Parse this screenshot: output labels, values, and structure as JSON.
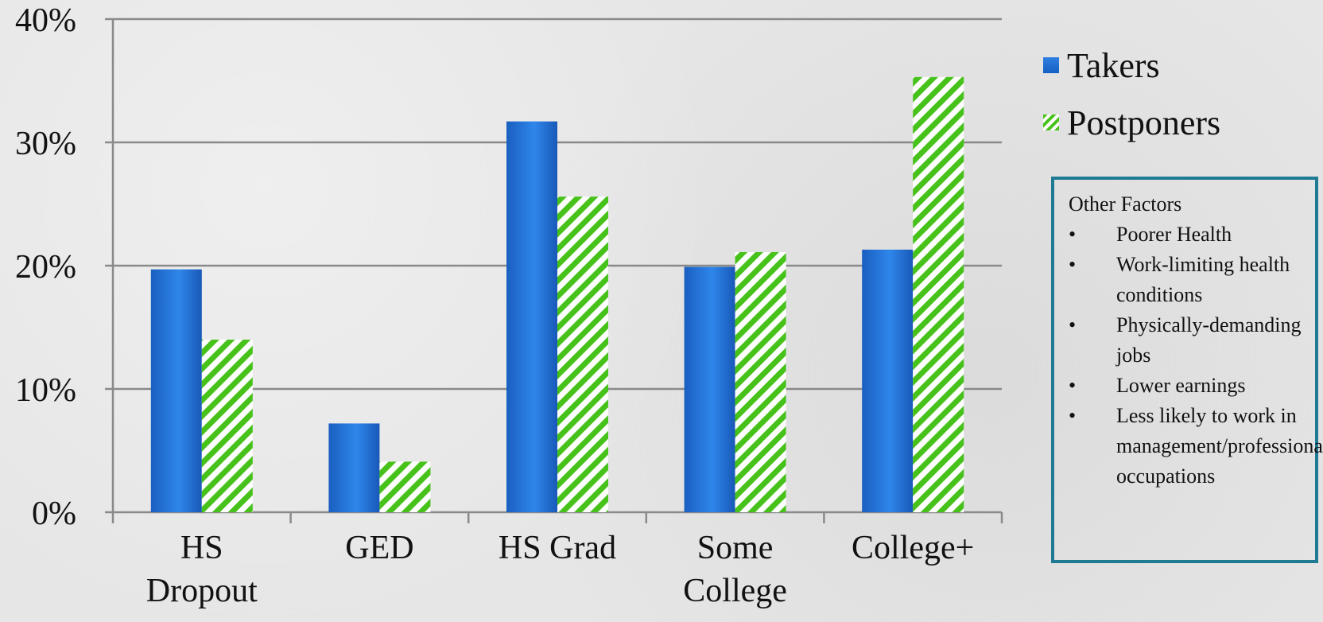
{
  "chart_data": {
    "type": "bar",
    "categories": [
      [
        "HS",
        "Dropout"
      ],
      [
        "GED"
      ],
      [
        "HS Grad"
      ],
      [
        "Some",
        "College"
      ],
      [
        "College+"
      ]
    ],
    "series": [
      {
        "name": "Takers",
        "values": [
          19.7,
          7.2,
          31.7,
          19.9,
          21.3
        ],
        "color": "#1f6fd8"
      },
      {
        "name": "Postponers",
        "values": [
          14.0,
          4.1,
          25.6,
          21.1,
          35.3
        ],
        "color": "#47c21b"
      }
    ],
    "yticks": [
      "0%",
      "10%",
      "20%",
      "30%",
      "40%"
    ],
    "ylim": [
      0,
      40
    ],
    "grid": true,
    "legend": "right"
  },
  "legend": {
    "takers": "Takers",
    "postponers": "Postponers"
  },
  "factors_box": {
    "title": "Other Factors",
    "items": [
      "Poorer Health",
      "Work-limiting health conditions",
      "Physically-demanding jobs",
      "Lower earnings",
      "Less likely to work in management/professional occupations"
    ]
  }
}
